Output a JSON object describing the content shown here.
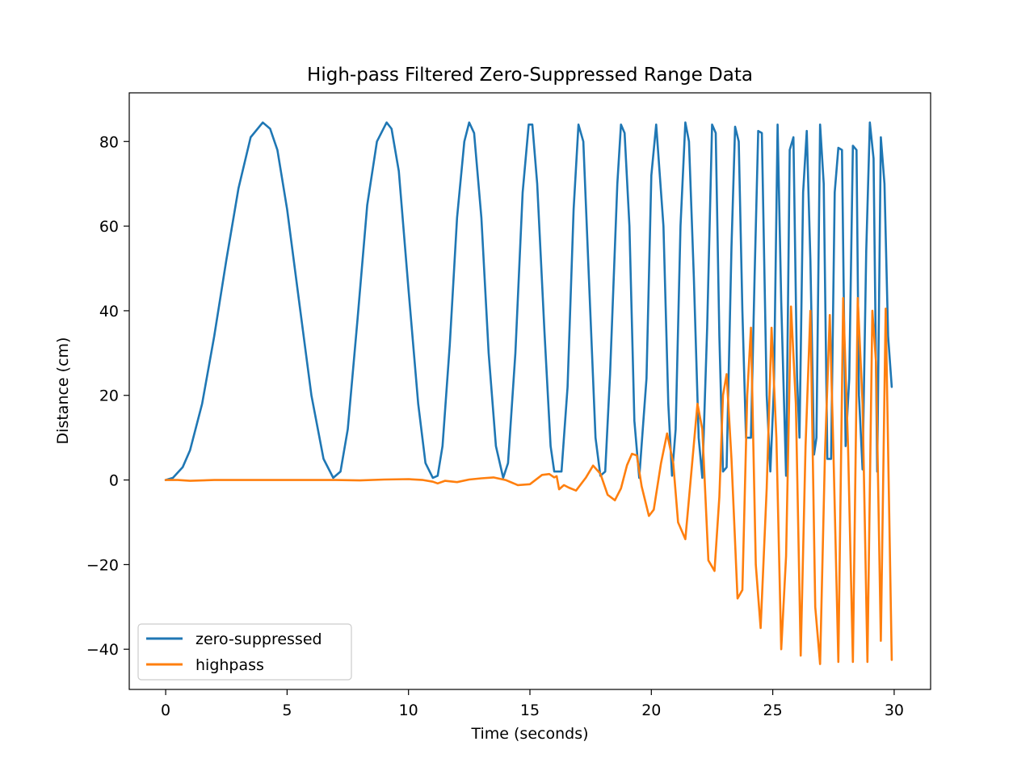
{
  "chart_data": {
    "type": "line",
    "title": "High-pass Filtered Zero-Suppressed Range Data",
    "xlabel": "Time (seconds)",
    "ylabel": "Distance (cm)",
    "xlim": [
      -1.5,
      31.5
    ],
    "ylim": [
      -49.5,
      91.5
    ],
    "xticks": [
      0,
      5,
      10,
      15,
      20,
      25,
      30
    ],
    "xtick_labels": [
      "0",
      "5",
      "10",
      "15",
      "20",
      "25",
      "30"
    ],
    "yticks": [
      -40,
      -20,
      0,
      20,
      40,
      60,
      80
    ],
    "ytick_labels": [
      "−40",
      "−20",
      "0",
      "20",
      "40",
      "60",
      "80"
    ],
    "grid": false,
    "legend_position": "lower-left",
    "series": [
      {
        "name": "zero-suppressed",
        "color": "#1f77b4",
        "x": [
          0.0,
          0.3,
          0.7,
          1.0,
          1.5,
          2.0,
          2.5,
          3.0,
          3.5,
          4.0,
          4.3,
          4.6,
          5.0,
          5.5,
          6.0,
          6.5,
          6.9,
          7.2,
          7.5,
          7.9,
          8.3,
          8.7,
          9.1,
          9.3,
          9.6,
          10.0,
          10.4,
          10.7,
          11.0,
          11.2,
          11.4,
          11.7,
          12.0,
          12.3,
          12.5,
          12.7,
          13.0,
          13.3,
          13.6,
          13.9,
          14.1,
          14.4,
          14.7,
          14.95,
          15.1,
          15.3,
          15.6,
          15.85,
          16.0,
          16.3,
          16.55,
          16.8,
          17.0,
          17.2,
          17.45,
          17.7,
          17.9,
          18.1,
          18.3,
          18.6,
          18.75,
          18.9,
          19.1,
          19.3,
          19.5,
          19.8,
          20.0,
          20.2,
          20.5,
          20.7,
          20.85,
          21.0,
          21.2,
          21.4,
          21.55,
          21.75,
          21.95,
          22.1,
          22.3,
          22.5,
          22.65,
          22.8,
          22.95,
          23.1,
          23.3,
          23.45,
          23.6,
          23.75,
          23.9,
          24.1,
          24.25,
          24.4,
          24.55,
          24.75,
          24.9,
          25.05,
          25.2,
          25.35,
          25.55,
          25.7,
          25.85,
          26.0,
          26.1,
          26.25,
          26.4,
          26.55,
          26.7,
          26.8,
          26.95,
          27.1,
          27.25,
          27.4,
          27.55,
          27.7,
          27.85,
          28.0,
          28.15,
          28.3,
          28.45,
          28.55,
          28.7,
          28.85,
          29.0,
          29.15,
          29.3,
          29.45,
          29.6,
          29.75,
          29.9
        ],
        "y": [
          0,
          0.5,
          3,
          7,
          18,
          34,
          52,
          69,
          81,
          84.5,
          83,
          78,
          64,
          42,
          20,
          5,
          0.5,
          2,
          12,
          38,
          65,
          80,
          84.5,
          83,
          73,
          45,
          18,
          4,
          0.5,
          1,
          8,
          32,
          62,
          80,
          84.5,
          82,
          62,
          30,
          8,
          0.5,
          4,
          30,
          68,
          84,
          84,
          70,
          35,
          8,
          2,
          2,
          22,
          64,
          84,
          80,
          45,
          10,
          1,
          2,
          25,
          70,
          84,
          82,
          60,
          14,
          0.5,
          24,
          72,
          84,
          60,
          18,
          1,
          12,
          60,
          84.5,
          80,
          48,
          10,
          0.5,
          36,
          84,
          82,
          34,
          2,
          3,
          55,
          83.5,
          80,
          40,
          10,
          10,
          48,
          82.5,
          82,
          20,
          2,
          22,
          84,
          42,
          1,
          78,
          81,
          24,
          10,
          68,
          82.5,
          52,
          6,
          10,
          84,
          70,
          5,
          5,
          68,
          78.5,
          78,
          8,
          24,
          79,
          78,
          20,
          2.5,
          54,
          84.5,
          76,
          2,
          81,
          70,
          34,
          22
        ]
      },
      {
        "name": "highpass",
        "color": "#ff7f0e",
        "x": [
          0.0,
          0.5,
          1.0,
          2.0,
          3.0,
          4.0,
          5.0,
          6.0,
          7.0,
          8.0,
          9.0,
          10.0,
          10.6,
          11.0,
          11.2,
          11.5,
          12.0,
          12.5,
          13.0,
          13.5,
          14.0,
          14.5,
          15.0,
          15.5,
          15.8,
          16.0,
          16.1,
          16.2,
          16.4,
          16.6,
          16.9,
          17.3,
          17.6,
          17.9,
          18.2,
          18.5,
          18.75,
          19.0,
          19.2,
          19.4,
          19.6,
          19.9,
          20.1,
          20.4,
          20.65,
          20.9,
          21.1,
          21.4,
          21.65,
          21.9,
          22.1,
          22.35,
          22.6,
          22.8,
          22.95,
          23.1,
          23.3,
          23.55,
          23.75,
          23.95,
          24.1,
          24.3,
          24.5,
          24.75,
          24.95,
          25.15,
          25.35,
          25.55,
          25.75,
          25.95,
          26.15,
          26.35,
          26.55,
          26.75,
          26.95,
          27.15,
          27.35,
          27.5,
          27.7,
          27.9,
          28.1,
          28.3,
          28.5,
          28.7,
          28.9,
          29.1,
          29.25,
          29.45,
          29.65,
          29.9
        ],
        "y": [
          0,
          0,
          -0.2,
          0,
          0,
          0,
          0,
          0,
          0,
          -0.1,
          0.1,
          0.2,
          0,
          -0.4,
          -0.8,
          -0.2,
          -0.5,
          0.1,
          0.4,
          0.6,
          0,
          -1.2,
          -1.0,
          1.2,
          1.4,
          0.6,
          0.9,
          -2.2,
          -1.2,
          -1.8,
          -2.5,
          0.5,
          3.4,
          1.5,
          -3.5,
          -4.8,
          -2.0,
          3.5,
          6.2,
          5.8,
          -1.5,
          -8.5,
          -7.0,
          4.0,
          11.0,
          4.0,
          -10.0,
          -14.0,
          2.0,
          18.0,
          12.0,
          -19.0,
          -21.5,
          -4.0,
          20.0,
          25.0,
          5.0,
          -28.0,
          -26.0,
          20.0,
          36.0,
          -20.0,
          -35.0,
          -2.0,
          36.0,
          10.0,
          -40.0,
          -18.0,
          41.0,
          18.0,
          -41.5,
          8.0,
          40.0,
          -30.0,
          -43.5,
          6.0,
          39.0,
          6.0,
          -43.0,
          43.0,
          8.0,
          -43.0,
          43.0,
          18.0,
          -43.0,
          40.0,
          28.0,
          -38.0,
          40.5,
          -42.5
        ]
      }
    ]
  }
}
